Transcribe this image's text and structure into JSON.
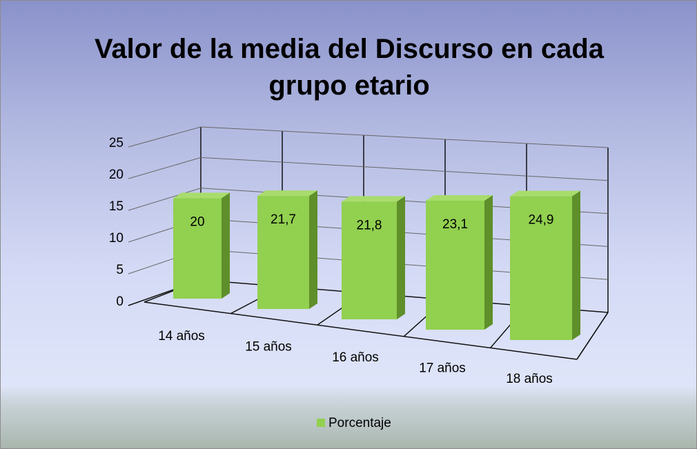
{
  "chart_data": {
    "type": "bar3d",
    "title": "Valor de la media del Discurso en cada grupo etario",
    "categories": [
      "14 años",
      "15 años",
      "16 años",
      "17 años",
      "18 años"
    ],
    "series": [
      {
        "name": "Porcentaje",
        "color": "#92d050",
        "values": [
          20,
          21.7,
          21.8,
          23.1,
          24.9
        ],
        "value_labels": [
          "20",
          "21,7",
          "21,8",
          "23,1",
          "24,9"
        ]
      }
    ],
    "ylim": [
      0,
      25
    ],
    "yticks": [
      0,
      5,
      10,
      15,
      20,
      25
    ],
    "grid": true,
    "legend": "bottom"
  }
}
